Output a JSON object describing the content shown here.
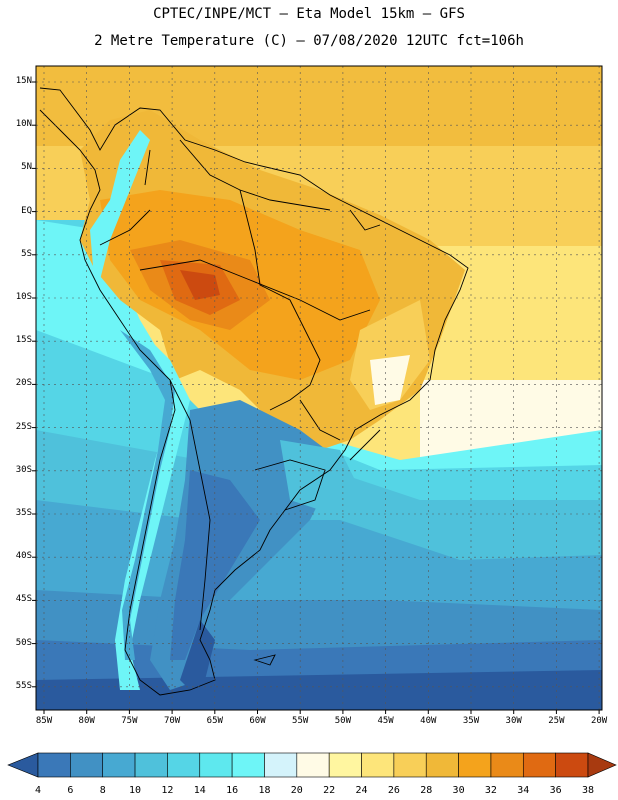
{
  "header": {
    "line1": "CPTEC/INPE/MCT –  Eta Model 15km – GFS",
    "line2": "2 Metre Temperature (C) – 07/08/2020 12UTC fct=106h"
  },
  "map": {
    "lon_range": [
      -86,
      -20
    ],
    "lat_range": [
      -58,
      17
    ],
    "lat_labels": [
      "15N",
      "10N",
      "5N",
      "EQ",
      "5S",
      "10S",
      "15S",
      "20S",
      "25S",
      "30S",
      "35S",
      "40S",
      "45S",
      "50S",
      "55S"
    ],
    "lon_labels": [
      "85W",
      "80W",
      "75W",
      "70W",
      "65W",
      "60W",
      "55W",
      "50W",
      "45W",
      "40W",
      "35W",
      "30W",
      "25W",
      "20W"
    ]
  },
  "colorbar": {
    "levels": [
      "4",
      "6",
      "8",
      "10",
      "12",
      "14",
      "16",
      "18",
      "20",
      "22",
      "24",
      "26",
      "28",
      "30",
      "32",
      "34",
      "36",
      "38"
    ],
    "colors": [
      "#2a5a9e",
      "#3a78b8",
      "#4191c4",
      "#47a9d2",
      "#4fc1db",
      "#55d5e6",
      "#5ee8ee",
      "#6ef5f7",
      "#d4f3fb",
      "#fffbe6",
      "#fff6a0",
      "#fde57a",
      "#f8cf58",
      "#f0b838",
      "#f4a31c",
      "#ea8a18",
      "#e06a12",
      "#cc4a10",
      "#a83a10"
    ]
  }
}
